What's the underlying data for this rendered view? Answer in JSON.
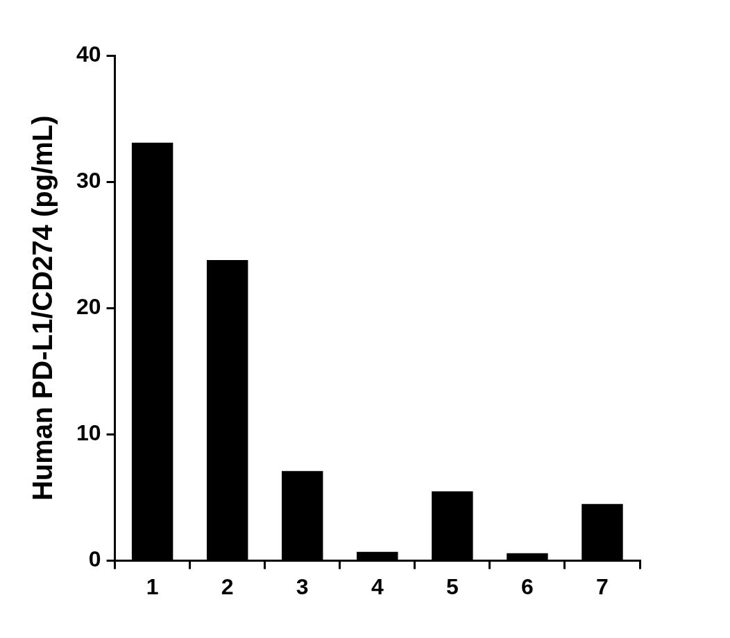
{
  "chart_data": {
    "type": "bar",
    "y_label": "Human PD-L1/CD274 (pg/mL)",
    "categories": [
      "1",
      "2",
      "3",
      "4",
      "5",
      "6",
      "7"
    ],
    "values": [
      33.1,
      23.8,
      7.1,
      0.7,
      5.5,
      0.6,
      4.5
    ],
    "color": "#000000",
    "ylim": [
      0,
      40
    ],
    "yticks": [
      0,
      10,
      20,
      30,
      40
    ],
    "grid": false
  }
}
